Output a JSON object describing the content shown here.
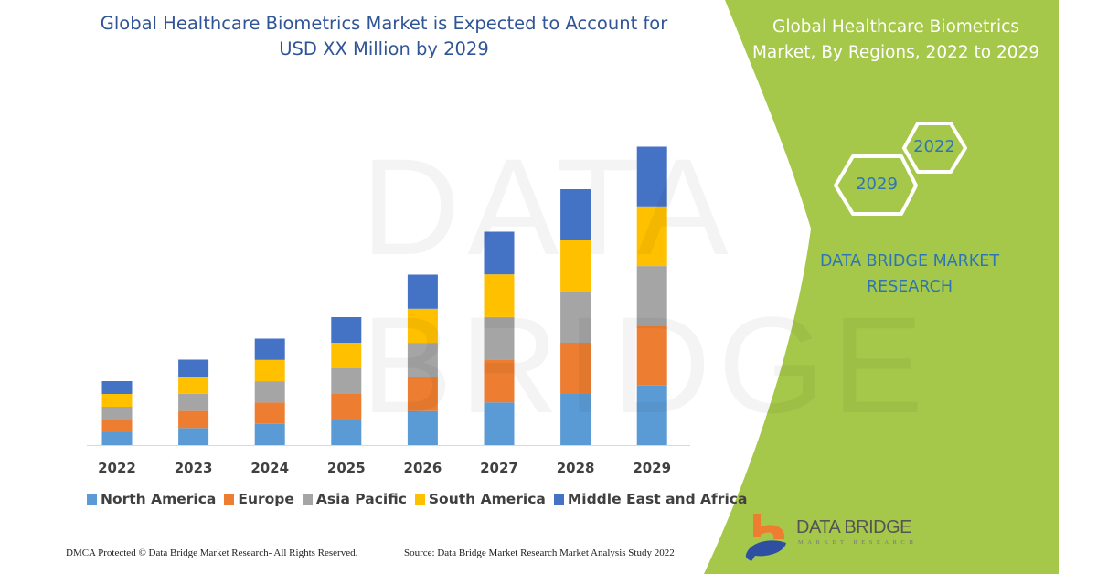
{
  "header": {
    "title_line1": "Global Healthcare Biometrics Market is Expected to Account for",
    "title_line2": "USD XX Million by 2029"
  },
  "side_panel": {
    "title_line1": "Global Healthcare Biometrics",
    "title_line2": "Market, By Regions, 2022 to 2029",
    "hex_2022": "2022",
    "hex_2029": "2029",
    "brand_line1": "DATA BRIDGE MARKET",
    "brand_line2": "RESEARCH",
    "logo_text": "DATA BRIDGE",
    "logo_subtext": "MARKET RESEARCH",
    "panel_color": "#A5C84A"
  },
  "watermark": "DATA BRIDGE",
  "footer": {
    "dmca": "DMCA Protected © Data Bridge Market Research- All Rights Reserved.",
    "source": "Source: Data Bridge Market Research Market Analysis Study 2022"
  },
  "chart_data": {
    "type": "bar",
    "stacked": true,
    "note_units": "relative (no value axis shown)",
    "categories": [
      "2022",
      "2023",
      "2024",
      "2025",
      "2026",
      "2027",
      "2028",
      "2029"
    ],
    "series": [
      {
        "name": "North America",
        "color": "#5B9BD5",
        "values": [
          14,
          18.7,
          23.3,
          28,
          37.3,
          46.7,
          56,
          65.3
        ]
      },
      {
        "name": "Europe",
        "color": "#ED7D31",
        "values": [
          14,
          18.7,
          23.3,
          28,
          37.3,
          46.7,
          56,
          65.3
        ]
      },
      {
        "name": "Asia Pacific",
        "color": "#A5A5A5",
        "values": [
          14,
          18.7,
          23.3,
          28,
          37.3,
          46.7,
          56,
          65.3
        ]
      },
      {
        "name": "South America",
        "color": "#FFC000",
        "values": [
          14,
          18.7,
          23.3,
          28,
          37.3,
          46.7,
          56,
          65.3
        ]
      },
      {
        "name": "Middle East and Africa",
        "color": "#4472C4",
        "values": [
          14,
          18.7,
          23.3,
          28,
          37.3,
          46.7,
          56,
          65.3
        ]
      }
    ],
    "ylim": [
      0,
      340
    ],
    "grid": false,
    "legend_position": "bottom"
  }
}
